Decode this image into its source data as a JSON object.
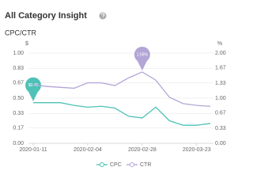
{
  "title": "All Category Insight",
  "chart_data": {
    "type": "line",
    "title": "CPC/CTR",
    "y_unit": "$",
    "y2_unit": "%",
    "categories": [
      "2020-01-11",
      null,
      null,
      null,
      "2020-02-04",
      null,
      null,
      null,
      "2020-02-28",
      null,
      null,
      null,
      "2020-03-23",
      null
    ],
    "series": [
      {
        "name": "CPC",
        "color": "#4fc1b7",
        "values": [
          0.45,
          0.45,
          0.45,
          0.42,
          0.4,
          0.41,
          0.39,
          0.3,
          0.28,
          0.4,
          0.25,
          0.2,
          0.2,
          0.22
        ],
        "value_labels": [
          "$0.45",
          null,
          null,
          null,
          null,
          null,
          null,
          null,
          null,
          null,
          null,
          null,
          null,
          null
        ]
      },
      {
        "name": "CTR",
        "color": "#b3a5d6",
        "axis": "y2",
        "values": [
          1.3,
          1.26,
          1.24,
          1.22,
          1.34,
          1.34,
          1.28,
          1.45,
          1.58,
          1.4,
          1.02,
          0.88,
          0.84,
          0.82
        ],
        "value_labels": [
          null,
          null,
          null,
          null,
          null,
          null,
          null,
          null,
          "1.58%",
          null,
          null,
          null,
          null,
          null
        ]
      }
    ],
    "ylim": [
      0,
      1
    ],
    "yticks": [
      {
        "value": 0,
        "label": "0.00"
      },
      0.17,
      0.33,
      {
        "value": 0.5,
        "label": "0.50"
      },
      0.67,
      0.83,
      {
        "value": 1,
        "label": "1.00"
      }
    ],
    "y2lim": [
      0,
      2
    ],
    "y2ticks": [
      {
        "value": 0,
        "label": "0.00"
      },
      0.33,
      0.67,
      {
        "value": 1,
        "label": "1.00"
      },
      1.33,
      1.67,
      {
        "value": 2,
        "label": "2.00"
      }
    ],
    "grid": true,
    "legend": "bottom"
  }
}
